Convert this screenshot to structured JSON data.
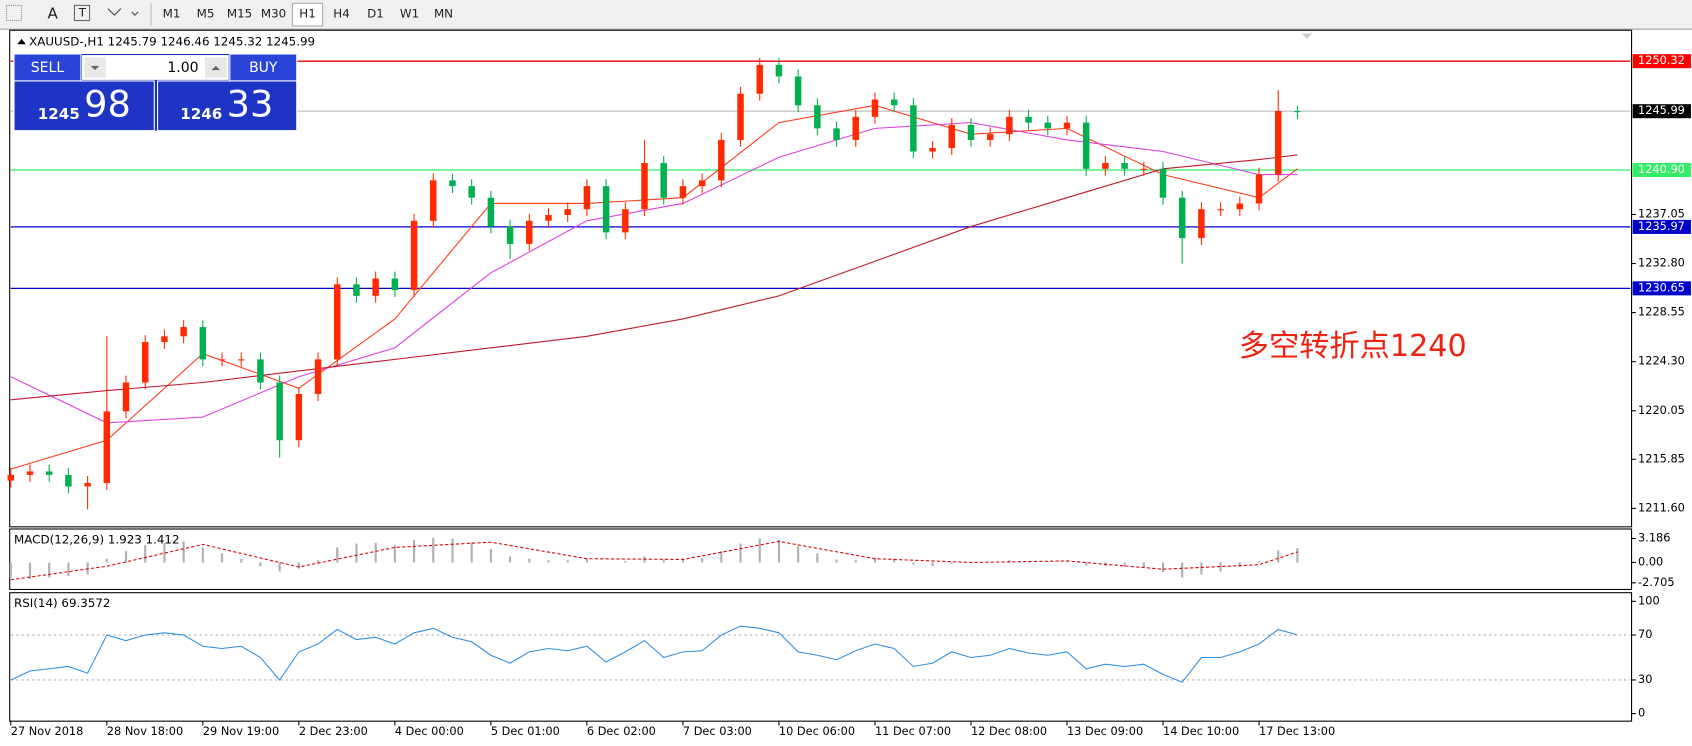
{
  "toolbar": {
    "font_tool": "A",
    "timeframes": [
      "M1",
      "M5",
      "M15",
      "M30",
      "H1",
      "H4",
      "D1",
      "W1",
      "MN"
    ]
  },
  "symbol_info": "XAUUSD-,H1  1245.79 1246.46 1245.32 1245.99",
  "trade_panel": {
    "sell": "SELL",
    "buy": "BUY",
    "lot": "1.00",
    "bid": {
      "prefix": "1245",
      "pips": "98"
    },
    "ask": {
      "prefix": "1246",
      "pips": "33"
    }
  },
  "chart_data": [
    {
      "type": "candlestick",
      "up_color": "#ff2a00",
      "down_color": "#00b050",
      "annotation": "多空转折点1240",
      "xlim": [
        0,
        422
      ],
      "xticks": [
        {
          "value": 0,
          "label": "27 Nov 2018"
        },
        {
          "value": 25,
          "label": "28 Nov 18:00"
        },
        {
          "value": 50,
          "label": "29 Nov 19:00"
        },
        {
          "value": 75,
          "label": "2 Dec 23:00"
        },
        {
          "value": 100,
          "label": "4 Dec 00:00"
        },
        {
          "value": 125,
          "label": "5 Dec 01:00"
        },
        {
          "value": 150,
          "label": "6 Dec 02:00"
        },
        {
          "value": 175,
          "label": "7 Dec 03:00"
        },
        {
          "value": 200,
          "label": "10 Dec 06:00"
        },
        {
          "value": 225,
          "label": "11 Dec 07:00"
        },
        {
          "value": 250,
          "label": "12 Dec 08:00"
        },
        {
          "value": 275,
          "label": "13 Dec 09:00"
        },
        {
          "value": 300,
          "label": "14 Dec 10:00"
        },
        {
          "value": 325,
          "label": "17 Dec 13:00"
        }
      ],
      "ylim": [
        1210.0,
        1253.0
      ],
      "yticks": [
        {
          "value": 1211.6,
          "label": "1211.60"
        },
        1215.85,
        1220.05,
        {
          "value": 1224.3,
          "label": "1224.30"
        },
        1228.55,
        {
          "value": 1232.8,
          "label": "1232.80"
        },
        1237.05
      ],
      "x": [
        0,
        5,
        10,
        15,
        20,
        25,
        30,
        35,
        40,
        45,
        50,
        55,
        60,
        65,
        70,
        75,
        80,
        85,
        90,
        95,
        100,
        105,
        110,
        115,
        120,
        125,
        130,
        135,
        140,
        145,
        150,
        155,
        160,
        165,
        170,
        175,
        180,
        185,
        190,
        195,
        200,
        205,
        210,
        215,
        220,
        225,
        230,
        235,
        240,
        245,
        250,
        255,
        260,
        265,
        270,
        275,
        280,
        285,
        290,
        295,
        300,
        305,
        310,
        315,
        320,
        325,
        330,
        335
      ],
      "open": [
        1214.0,
        1214.5,
        1214.8,
        1214.5,
        1213.5,
        1213.8,
        1220,
        1222.5,
        1226,
        1226.5,
        1227.3,
        1224.5,
        1224.5,
        1224.5,
        1222.5,
        1217.5,
        1221.5,
        1224.5,
        1231,
        1230,
        1231.5,
        1230.5,
        1236.5,
        1240,
        1239.5,
        1238.5,
        1236,
        1234.5,
        1236.5,
        1237,
        1237.5,
        1239.5,
        1235.5,
        1237.5,
        1241.5,
        1238.5,
        1239.5,
        1240,
        1243.5,
        1247.5,
        1250,
        1249,
        1246.5,
        1244.5,
        1243.5,
        1245.5,
        1247,
        1246.5,
        1242.5,
        1242.8,
        1244.8,
        1243.5,
        1244,
        1245.5,
        1245,
        1244.5,
        1245,
        1241,
        1241.5,
        1241,
        1241,
        1238.5,
        1235,
        1237.5,
        1237.5,
        1238,
        1240.5,
        1246
      ],
      "high": [
        1215.1,
        1215.4,
        1215.4,
        1215.1,
        1214.4,
        1226.5,
        1223.1,
        1226.6,
        1227.1,
        1227.9,
        1227.9,
        1225.1,
        1225.1,
        1225.1,
        1223.1,
        1222.1,
        1225.1,
        1231.6,
        1231.6,
        1232.1,
        1232.1,
        1237.1,
        1240.6,
        1240.6,
        1240.1,
        1239.1,
        1236.6,
        1237.1,
        1237.6,
        1238.1,
        1240.1,
        1240.1,
        1238.1,
        1243.5,
        1242.1,
        1240.1,
        1240.6,
        1244.1,
        1248.1,
        1250.6,
        1250.6,
        1249.6,
        1247.1,
        1245.1,
        1246.1,
        1247.6,
        1247.6,
        1247.1,
        1243.4,
        1245.4,
        1245.4,
        1244.6,
        1246.1,
        1246.1,
        1245.6,
        1245.6,
        1245.6,
        1242.1,
        1242.1,
        1241.6,
        1241.6,
        1239.1,
        1238.1,
        1238.1,
        1238.6,
        1241.1,
        1247.8,
        1246.46
      ],
      "low": [
        1213.4,
        1213.9,
        1213.9,
        1212.9,
        1211.5,
        1213.2,
        1219.4,
        1221.9,
        1225.4,
        1225.9,
        1223.9,
        1223.9,
        1223.9,
        1221.9,
        1216.0,
        1216.9,
        1220.9,
        1223.9,
        1229.4,
        1229.4,
        1229.9,
        1229.9,
        1235.9,
        1238.9,
        1237.9,
        1235.4,
        1233.2,
        1233.9,
        1235.9,
        1236.4,
        1236.9,
        1234.9,
        1234.9,
        1236.9,
        1237.9,
        1237.9,
        1238.9,
        1239.4,
        1242.9,
        1246.9,
        1248.4,
        1245.9,
        1243.9,
        1242.9,
        1242.9,
        1244.9,
        1245.9,
        1241.9,
        1241.9,
        1242.2,
        1242.9,
        1242.9,
        1243.4,
        1244.4,
        1243.9,
        1243.9,
        1240.4,
        1240.4,
        1240.4,
        1240.4,
        1237.9,
        1232.8,
        1234.4,
        1236.9,
        1236.9,
        1237.4,
        1239.9,
        1245.32
      ],
      "close": [
        1214.5,
        1214.8,
        1214.5,
        1213.5,
        1213.8,
        1220,
        1222.5,
        1226,
        1226.5,
        1227.3,
        1224.5,
        1224.5,
        1224.5,
        1222.5,
        1217.5,
        1221.5,
        1224.5,
        1231,
        1230,
        1231.5,
        1230.5,
        1236.5,
        1240,
        1239.5,
        1238.5,
        1236,
        1234.5,
        1236.5,
        1237,
        1237.5,
        1239.5,
        1235.5,
        1237.5,
        1241.5,
        1238.5,
        1239.5,
        1240,
        1243.5,
        1247.5,
        1250,
        1249,
        1246.5,
        1244.5,
        1243.5,
        1245.5,
        1247,
        1246.5,
        1242.5,
        1242.8,
        1244.8,
        1243.5,
        1244,
        1245.5,
        1245,
        1244.5,
        1245,
        1241,
        1241.5,
        1241,
        1241,
        1238.5,
        1235,
        1237.5,
        1237.5,
        1238,
        1240.5,
        1246,
        1245.99
      ],
      "series": [
        {
          "color": "#ff3b1a",
          "x": [
            0,
            25,
            50,
            75,
            100,
            125,
            150,
            175,
            200,
            225,
            250,
            275,
            300,
            325,
            335
          ],
          "values": [
            1215,
            1217.5,
            1225,
            1222,
            1228,
            1238,
            1238,
            1238.5,
            1245,
            1246.5,
            1244,
            1244.5,
            1240.5,
            1238.5,
            1241
          ]
        },
        {
          "color": "#e040e0",
          "x": [
            0,
            25,
            50,
            75,
            100,
            125,
            150,
            175,
            200,
            225,
            250,
            275,
            300,
            325,
            335
          ],
          "values": [
            1223,
            1219,
            1219.5,
            1223,
            1225.5,
            1232,
            1236.5,
            1238,
            1242,
            1244.5,
            1245,
            1243.5,
            1242.5,
            1240.5,
            1240.5
          ]
        },
        {
          "color": "#c0182a",
          "x": [
            0,
            25,
            50,
            75,
            100,
            125,
            150,
            175,
            200,
            225,
            250,
            275,
            300,
            325,
            335
          ],
          "values": [
            1221,
            1221.8,
            1222.5,
            1223.5,
            1224.5,
            1225.5,
            1226.5,
            1228,
            1230,
            1233,
            1236,
            1238.5,
            1241,
            1241.8,
            1242.2
          ]
        }
      ],
      "hlines": [
        {
          "level": 1250.32,
          "color": "#ff0000",
          "label_color": "#ff0000",
          "text_color": "#ffffff"
        },
        {
          "level": 1245.99,
          "color": "#c8c8c8",
          "label_color": "#000000",
          "text_color": "#ffffff"
        },
        {
          "level": {
            "value": 1240.9,
            "label": "1240.90"
          },
          "color": "#33ee66",
          "label_color": "#33ee66",
          "text_color": "#ffffff"
        },
        {
          "level": 1235.97,
          "color": "#0000cc",
          "label_color": "#0000cc",
          "text_color": "#ffffff"
        },
        {
          "level": 1230.65,
          "color": "#0000cc",
          "label_color": "#0000cc",
          "text_color": "#ffffff"
        }
      ]
    },
    {
      "type": "macd",
      "title": "MACD(12,26,9) 1.923 1.412",
      "bar_color": "#b0b0b0",
      "signal_color": "#e00000",
      "ylim": [
        -3.59,
        4.45
      ],
      "yticks": [
        3.186,
        {
          "value": 0,
          "label": "0.00"
        },
        -2.705
      ],
      "x": [
        0,
        5,
        10,
        15,
        20,
        25,
        30,
        35,
        40,
        45,
        50,
        55,
        60,
        65,
        70,
        75,
        80,
        85,
        90,
        95,
        100,
        105,
        110,
        115,
        120,
        125,
        130,
        135,
        140,
        145,
        150,
        155,
        160,
        165,
        170,
        175,
        180,
        185,
        190,
        195,
        200,
        205,
        210,
        215,
        220,
        225,
        230,
        235,
        240,
        245,
        250,
        255,
        260,
        265,
        270,
        275,
        280,
        285,
        290,
        295,
        300,
        305,
        310,
        315,
        320,
        325,
        330,
        335
      ],
      "values": [
        -2.0,
        -2.2,
        -2.0,
        -1.8,
        -1.6,
        0.5,
        1.5,
        2.3,
        2.6,
        2.8,
        2.0,
        1.2,
        0.5,
        -0.5,
        -1.2,
        -0.8,
        0.3,
        2.0,
        2.5,
        2.6,
        2.3,
        3.0,
        3.3,
        3.2,
        2.7,
        1.8,
        0.8,
        0.5,
        0.3,
        0.3,
        0.5,
        0.0,
        0.2,
        0.8,
        0.4,
        0.5,
        0.6,
        1.5,
        2.5,
        3.2,
        3.0,
        2.2,
        1.2,
        0.4,
        0.3,
        0.6,
        0.5,
        -0.3,
        -0.5,
        -0.2,
        -0.1,
        0.0,
        0.3,
        0.2,
        0.1,
        0.1,
        -0.4,
        -0.5,
        -0.6,
        -0.7,
        -1.3,
        -2.0,
        -1.6,
        -1.2,
        -0.6,
        0.2,
        1.6,
        1.9
      ],
      "signal_x": [
        0,
        25,
        50,
        75,
        100,
        125,
        150,
        175,
        200,
        225,
        250,
        275,
        300,
        325,
        335
      ],
      "signal": [
        -2.3,
        -0.5,
        2.4,
        -0.6,
        2.0,
        2.7,
        0.5,
        0.4,
        2.8,
        0.5,
        0.0,
        0.2,
        -0.9,
        -0.3,
        1.4
      ]
    },
    {
      "type": "rsi",
      "title": "RSI(14) 69.3572",
      "color": "#2f8fe0",
      "ylim": [
        -6.7,
        107.7
      ],
      "yticks": [
        100,
        70,
        30,
        0
      ],
      "x": [
        0,
        5,
        10,
        15,
        20,
        25,
        30,
        35,
        40,
        45,
        50,
        55,
        60,
        65,
        70,
        75,
        80,
        85,
        90,
        95,
        100,
        105,
        110,
        115,
        120,
        125,
        130,
        135,
        140,
        145,
        150,
        155,
        160,
        165,
        170,
        175,
        180,
        185,
        190,
        195,
        200,
        205,
        210,
        215,
        220,
        225,
        230,
        235,
        240,
        245,
        250,
        255,
        260,
        265,
        270,
        275,
        280,
        285,
        290,
        295,
        300,
        305,
        310,
        315,
        320,
        325,
        330,
        335
      ],
      "values": [
        30,
        38,
        40,
        42,
        36,
        70,
        65,
        70,
        72,
        70,
        60,
        58,
        60,
        50,
        30,
        55,
        62,
        75,
        66,
        68,
        62,
        72,
        76,
        68,
        64,
        52,
        45,
        55,
        58,
        56,
        60,
        46,
        55,
        65,
        50,
        55,
        56,
        70,
        78,
        76,
        72,
        55,
        52,
        48,
        56,
        62,
        58,
        42,
        45,
        55,
        50,
        52,
        58,
        54,
        52,
        55,
        40,
        44,
        42,
        44,
        35,
        28,
        50,
        50,
        55,
        62,
        75,
        70
      ]
    }
  ]
}
